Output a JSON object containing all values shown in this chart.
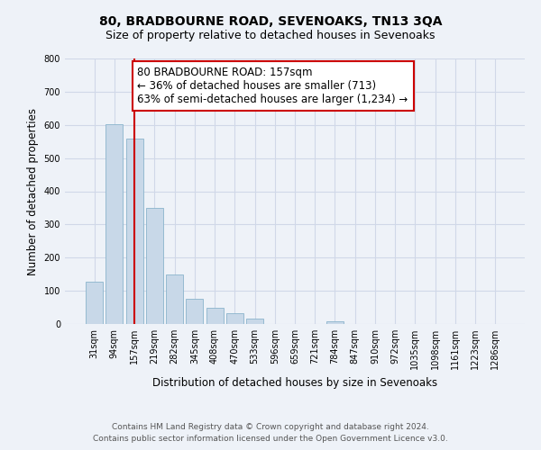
{
  "title": "80, BRADBOURNE ROAD, SEVENOAKS, TN13 3QA",
  "subtitle": "Size of property relative to detached houses in Sevenoaks",
  "xlabel": "Distribution of detached houses by size in Sevenoaks",
  "ylabel": "Number of detached properties",
  "categories": [
    "31sqm",
    "94sqm",
    "157sqm",
    "219sqm",
    "282sqm",
    "345sqm",
    "408sqm",
    "470sqm",
    "533sqm",
    "596sqm",
    "659sqm",
    "721sqm",
    "784sqm",
    "847sqm",
    "910sqm",
    "972sqm",
    "1035sqm",
    "1098sqm",
    "1161sqm",
    "1223sqm",
    "1286sqm"
  ],
  "values": [
    128,
    602,
    558,
    350,
    150,
    75,
    50,
    33,
    15,
    0,
    0,
    0,
    8,
    0,
    0,
    0,
    0,
    0,
    0,
    0,
    0
  ],
  "bar_color": "#c8d8e8",
  "bar_edge_color": "#8ab4cc",
  "highlight_index": 2,
  "highlight_line_color": "#cc0000",
  "annotation_line1": "80 BRADBOURNE ROAD: 157sqm",
  "annotation_line2": "← 36% of detached houses are smaller (713)",
  "annotation_line3": "63% of semi-detached houses are larger (1,234) →",
  "annotation_box_color": "#ffffff",
  "annotation_box_edge_color": "#cc0000",
  "ylim": [
    0,
    800
  ],
  "yticks": [
    0,
    100,
    200,
    300,
    400,
    500,
    600,
    700,
    800
  ],
  "grid_color": "#d0d8e8",
  "background_color": "#eef2f8",
  "footer_line1": "Contains HM Land Registry data © Crown copyright and database right 2024.",
  "footer_line2": "Contains public sector information licensed under the Open Government Licence v3.0.",
  "title_fontsize": 10,
  "subtitle_fontsize": 9,
  "axis_label_fontsize": 8.5,
  "tick_fontsize": 7,
  "annotation_fontsize": 8.5,
  "footer_fontsize": 6.5
}
